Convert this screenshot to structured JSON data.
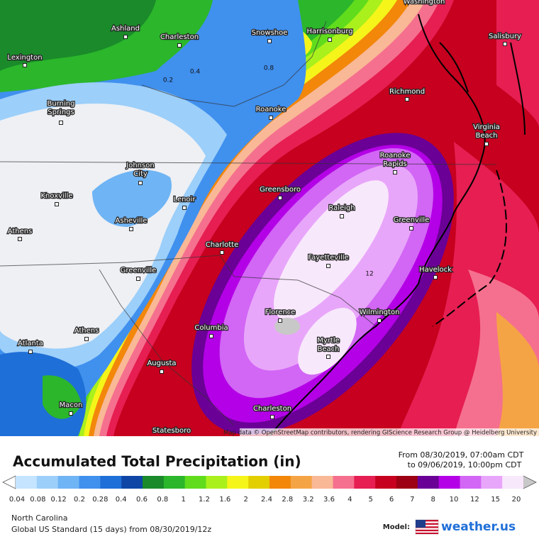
{
  "map": {
    "cities": [
      [
        "Washington"
      ],
      [
        "Ashland"
      ],
      [
        "Charleston"
      ],
      [
        "Snowshoe"
      ],
      [
        "Harrisonburg"
      ],
      [
        "Salisbury"
      ],
      [
        "Lexington"
      ],
      [
        "Richmond"
      ],
      [
        "Burning",
        "Springs"
      ],
      [
        "Roanoke"
      ],
      [
        "Virginia",
        "Beach"
      ],
      [
        "Johnson",
        "City"
      ],
      [
        "Roanoke",
        "Rapids"
      ],
      [
        "Knoxville"
      ],
      [
        "Greensboro"
      ],
      [
        "Lenoir"
      ],
      [
        "Raleigh"
      ],
      [
        "Greenville"
      ],
      [
        "Asheville"
      ],
      [
        "Athens"
      ],
      [
        "Charlotte"
      ],
      [
        "Fayetteville"
      ],
      [
        "Havelock"
      ],
      [
        "Greenville"
      ],
      [
        "Wilmington"
      ],
      [
        "Florence"
      ],
      [
        "Columbia"
      ],
      [
        "Athens"
      ],
      [
        "Myrtle",
        "Beach"
      ],
      [
        "Atlanta"
      ],
      [
        "Augusta"
      ],
      [
        "Macon"
      ],
      [
        "Charleston"
      ],
      [
        "Statesboro"
      ]
    ],
    "contour_labels": [
      "0.2",
      "0.4",
      "0.8",
      "12"
    ],
    "attribution": "Map data © OpenStreetMap contributors, rendering GIScience Research Group @ Heidelberg University"
  },
  "legend": {
    "title": "Accumulated Total Precipitation (in)",
    "ticks": [
      0.04,
      0.08,
      0.12,
      0.2,
      0.28,
      0.4,
      0.6,
      0.8,
      1,
      1.2,
      1.6,
      2,
      2.4,
      2.8,
      3.2,
      3.6,
      4,
      5,
      6,
      7,
      8,
      10,
      12,
      15,
      20
    ],
    "colors": [
      "#c4e4ff",
      "#9ccffa",
      "#6fb4f4",
      "#4090ee",
      "#1f6fd8",
      "#0f46a6",
      "#1a8a2a",
      "#2bb62b",
      "#60dc1c",
      "#aaf01c",
      "#f5f51a",
      "#e3cf00",
      "#f2870a",
      "#f5a445",
      "#f9b896",
      "#f5708e",
      "#e61e52",
      "#c6001e",
      "#9c0012",
      "#6a0096",
      "#b400e6",
      "#d266f5",
      "#e8a6fa",
      "#f8e8fc"
    ]
  },
  "valid": {
    "from": "From 08/30/2019, 07:00am CDT",
    "to": "to 09/06/2019, 10:00pm CDT"
  },
  "footer": {
    "region": "North Carolina",
    "run": "Global US Standard (15 days) from 08/30/2019/12z",
    "model_label": "Model:",
    "brand": "weather.us"
  }
}
